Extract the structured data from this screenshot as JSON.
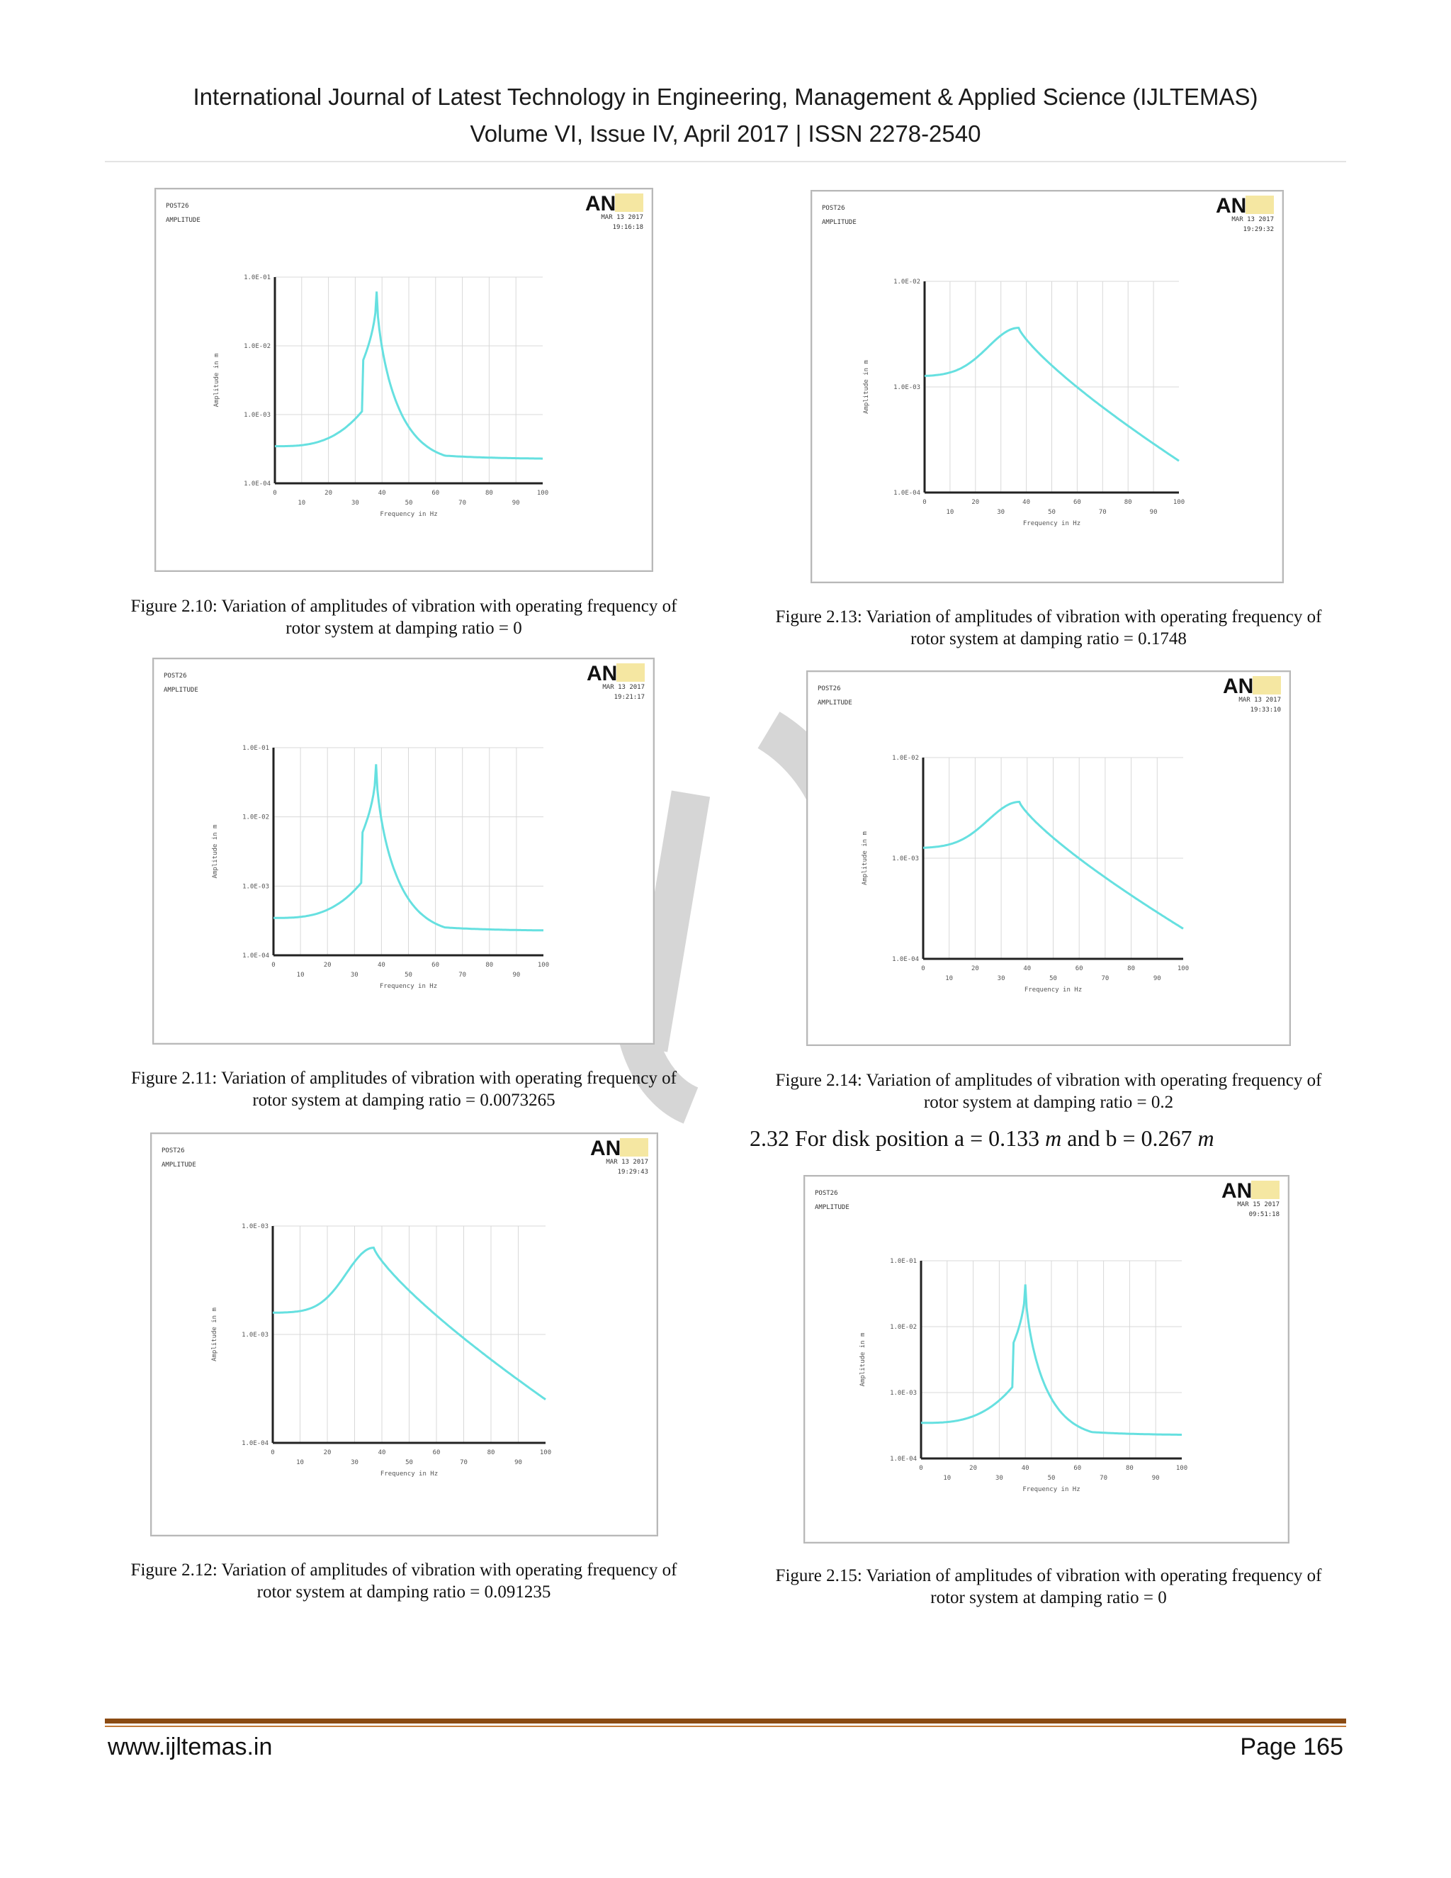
{
  "header": {
    "journal": "International Journal of Latest Technology in Engineering, Management & Applied Science (IJLTEMAS)",
    "issue": "Volume VI, Issue IV, April 2017 | ISSN 2278-2540"
  },
  "figures": [
    {
      "id": "fig210",
      "caption_line1": "Figure 2.10: Variation of amplitudes of vibration with operating frequency of",
      "caption_line2": "rotor system at damping ratio = 0",
      "plot": {
        "post": "POST26",
        "amp": "AMPLITUDE",
        "date": "MAR 13 2017",
        "time": "19:16:18",
        "yticks": [
          "1.0E-01",
          "1.0E-02",
          "1.0E-03",
          "1.0E-04"
        ],
        "xticks_top": [
          "0",
          "20",
          "40",
          "60",
          "80",
          "100"
        ],
        "xticks_bottom": [
          "10",
          "30",
          "50",
          "70",
          "90"
        ],
        "xlabel": "Frequency in Hz",
        "ylabel": "Amplitude in m"
      }
    },
    {
      "id": "fig211",
      "caption_line1": "Figure 2.11: Variation of amplitudes of vibration with operating frequency of",
      "caption_line2": "rotor system at damping ratio = 0.0073265",
      "plot": {
        "post": "POST26",
        "amp": "AMPLITUDE",
        "date": "MAR 13 2017",
        "time": "19:21:17",
        "yticks": [
          "1.0E-01",
          "1.0E-02",
          "1.0E-03",
          "1.0E-04"
        ],
        "xticks_top": [
          "0",
          "20",
          "40",
          "60",
          "80",
          "100"
        ],
        "xticks_bottom": [
          "10",
          "30",
          "50",
          "70",
          "90"
        ],
        "xlabel": "Frequency in Hz",
        "ylabel": "Amplitude in m"
      }
    },
    {
      "id": "fig212",
      "caption_line1": "Figure 2.12: Variation of amplitudes of vibration with operating frequency of",
      "caption_line2": "rotor system at damping ratio = 0.091235",
      "plot": {
        "post": "POST26",
        "amp": "AMPLITUDE",
        "date": "MAR 13 2017",
        "time": "19:29:43",
        "yticks": [
          "1.0E-03",
          "1.0E-03",
          "1.0E-04"
        ],
        "xticks_top": [
          "0",
          "20",
          "40",
          "60",
          "80",
          "100"
        ],
        "xticks_bottom": [
          "10",
          "30",
          "50",
          "70",
          "90"
        ],
        "xlabel": "Frequency in Hz",
        "ylabel": "Amplitude in m"
      }
    },
    {
      "id": "fig213",
      "caption_line1": "Figure 2.13: Variation of amplitudes of vibration with operating frequency of",
      "caption_line2": "rotor system at damping ratio = 0.1748",
      "plot": {
        "post": "POST26",
        "amp": "AMPLITUDE",
        "date": "MAR 13 2017",
        "time": "19:29:32",
        "yticks": [
          "1.0E-02",
          "1.0E-03",
          "1.0E-04"
        ],
        "xticks_top": [
          "0",
          "20",
          "40",
          "60",
          "80",
          "100"
        ],
        "xticks_bottom": [
          "10",
          "30",
          "50",
          "70",
          "90"
        ],
        "xlabel": "Frequency in Hz",
        "ylabel": "Amplitude in m"
      }
    },
    {
      "id": "fig214",
      "caption_line1": "Figure 2.14: Variation of amplitudes of vibration with operating frequency of",
      "caption_line2": "rotor system at damping ratio = 0.2",
      "plot": {
        "post": "POST26",
        "amp": "AMPLITUDE",
        "date": "MAR 13 2017",
        "time": "19:33:10",
        "yticks": [
          "1.0E-02",
          "1.0E-03",
          "1.0E-04"
        ],
        "xticks_top": [
          "0",
          "20",
          "40",
          "60",
          "80",
          "100"
        ],
        "xticks_bottom": [
          "10",
          "30",
          "50",
          "70",
          "90"
        ],
        "xlabel": "Frequency in Hz",
        "ylabel": "Amplitude in m"
      }
    },
    {
      "id": "fig215",
      "caption_line1": "Figure 2.15: Variation of amplitudes of vibration with operating frequency of",
      "caption_line2": "rotor system at damping ratio = 0",
      "plot": {
        "post": "POST26",
        "amp": "AMPLITUDE",
        "date": "MAR 15 2017",
        "time": "09:51:18",
        "yticks": [
          "1.0E-01",
          "1.0E-02",
          "1.0E-03",
          "1.0E-04"
        ],
        "xticks_top": [
          "0",
          "20",
          "40",
          "60",
          "80",
          "100"
        ],
        "xticks_bottom": [
          "10",
          "30",
          "50",
          "70",
          "90"
        ],
        "xlabel": "Frequency in Hz",
        "ylabel": "Amplitude in m"
      }
    }
  ],
  "section": {
    "prefix": "2.32 For disk position a = 0.133 ",
    "unit_a": "m",
    "mid": " and b = 0.267 ",
    "unit_b": "m"
  },
  "logo_text": "AN",
  "curve_color": "#66e0e0",
  "footer": {
    "left": "www.ijltemas.in",
    "right": "Page 165"
  }
}
